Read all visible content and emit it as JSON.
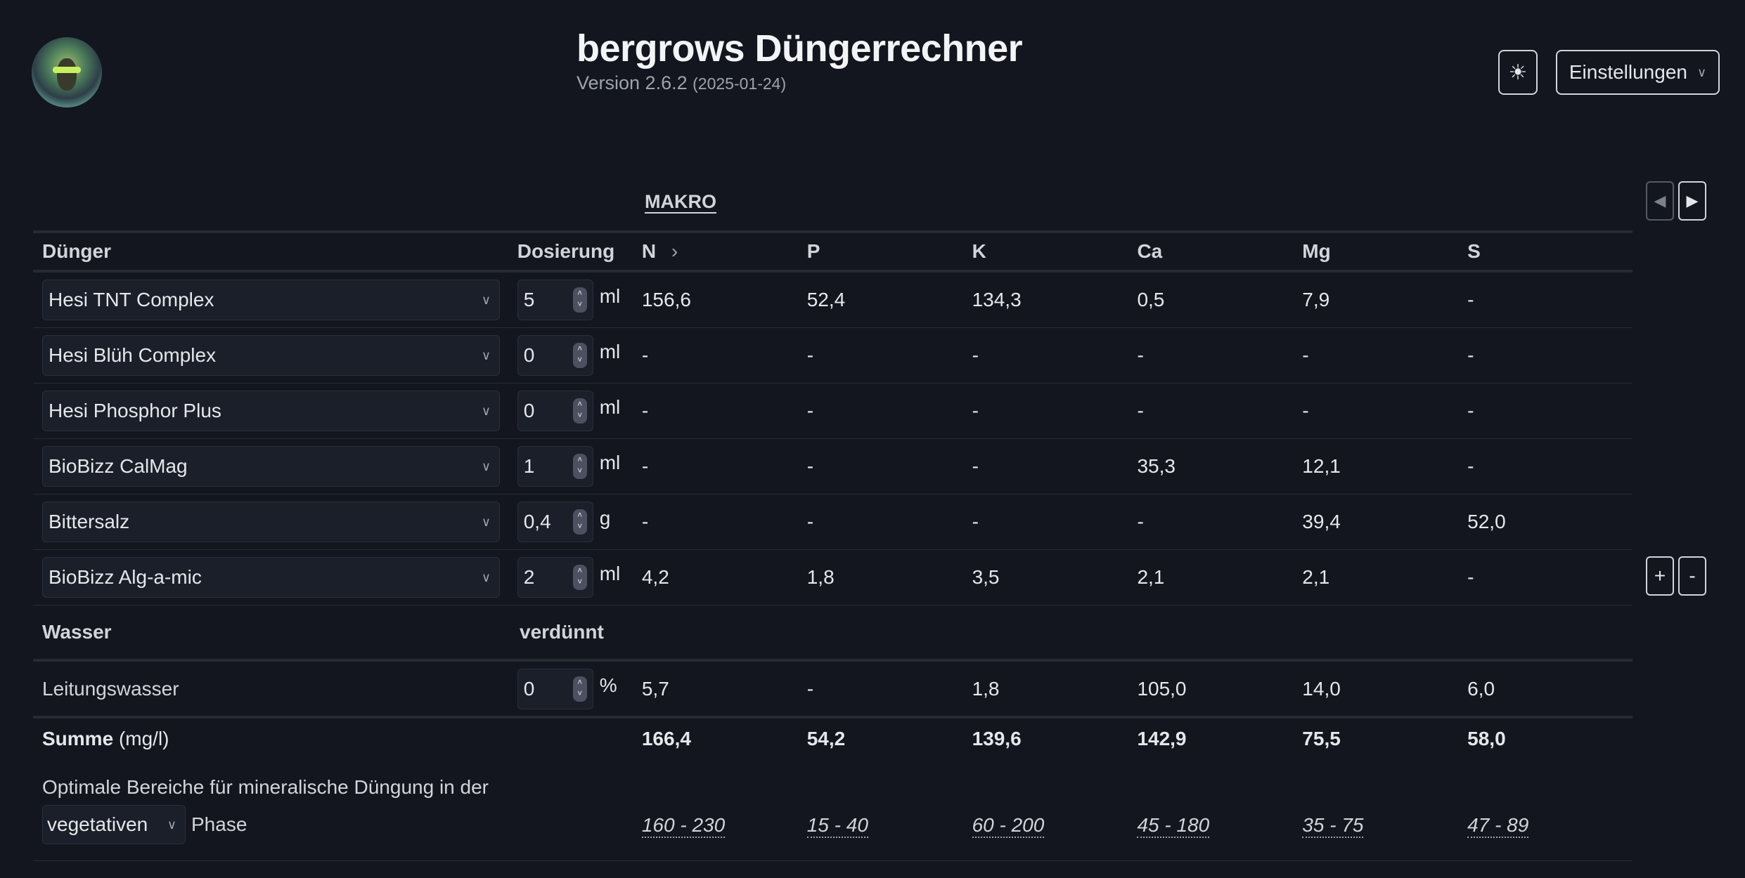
{
  "header": {
    "title": "bergrows Düngerrechner",
    "version": "Version 2.6.2",
    "date": "(2025-01-24)",
    "theme_icon": "sun-icon",
    "settings_label": "Einstellungen"
  },
  "tab": {
    "label": "MAKRO"
  },
  "columns": {
    "fert": "Dünger",
    "dose": "Dosierung",
    "nutrients": [
      "N",
      "P",
      "K",
      "Ca",
      "Mg",
      "S"
    ],
    "n_arrow": "›"
  },
  "fertilizers": [
    {
      "name": "Hesi TNT Complex",
      "dose": "5",
      "unit": "ml",
      "values": [
        "156,6",
        "52,4",
        "134,3",
        "0,5",
        "7,9",
        "-"
      ]
    },
    {
      "name": "Hesi Blüh Complex",
      "dose": "0",
      "unit": "ml",
      "values": [
        "-",
        "-",
        "-",
        "-",
        "-",
        "-"
      ]
    },
    {
      "name": "Hesi Phosphor Plus",
      "dose": "0",
      "unit": "ml",
      "values": [
        "-",
        "-",
        "-",
        "-",
        "-",
        "-"
      ]
    },
    {
      "name": "BioBizz CalMag",
      "dose": "1",
      "unit": "ml",
      "values": [
        "-",
        "-",
        "-",
        "35,3",
        "12,1",
        "-"
      ]
    },
    {
      "name": "Bittersalz",
      "dose": "0,4",
      "unit": "g",
      "values": [
        "-",
        "-",
        "-",
        "-",
        "39,4",
        "52,0"
      ]
    },
    {
      "name": "BioBizz Alg-a-mic",
      "dose": "2",
      "unit": "ml",
      "values": [
        "4,2",
        "1,8",
        "3,5",
        "2,1",
        "2,1",
        "-"
      ]
    }
  ],
  "water": {
    "header": "Wasser",
    "diluted": "verdünnt",
    "name": "Leitungswasser",
    "value": "0",
    "unit": "%",
    "values": [
      "5,7",
      "-",
      "1,8",
      "105,0",
      "14,0",
      "6,0"
    ]
  },
  "sum": {
    "label": "Summe",
    "unit": "(mg/l)",
    "values": [
      "166,4",
      "54,2",
      "139,6",
      "142,9",
      "75,5",
      "58,0"
    ]
  },
  "optimal": {
    "text": "Optimale Bereiche für mineralische Düngung in der",
    "phase": "vegetativen",
    "phase_suffix": "Phase",
    "ranges": [
      "160 - 230",
      "15 - 40",
      "60 - 200",
      "45 - 180",
      "35 - 75",
      "47 - 89"
    ]
  },
  "controls": {
    "prev": "◀",
    "next": "▶",
    "add": "+",
    "remove": "-"
  }
}
